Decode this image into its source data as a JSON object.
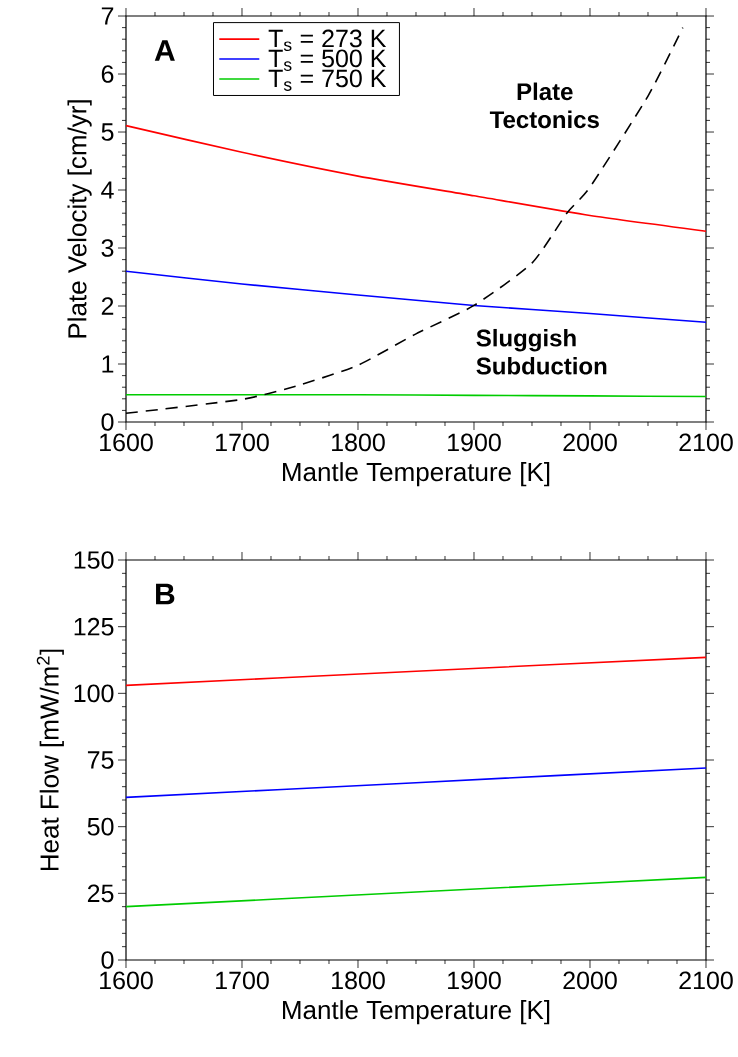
{
  "chart_data": [
    {
      "type": "line",
      "title": "A",
      "xlabel": "Mantle Temperature [K]",
      "ylabel": "Plate Velocity [cm/yr]",
      "xlim": [
        1600,
        2100
      ],
      "ylim": [
        0,
        7
      ],
      "xticks": [
        1600,
        1700,
        1800,
        1900,
        2000,
        2100
      ],
      "yticks": [
        0,
        1,
        2,
        3,
        4,
        5,
        6,
        7
      ],
      "legend": "top left",
      "marker": "none",
      "x": [
        1600,
        1700,
        1800,
        1900,
        2000,
        2100
      ],
      "series": [
        {
          "name": "T$_{s}$ = 273 K",
          "color": "#ff0000",
          "values": [
            5.11,
            4.65,
            4.24,
            3.9,
            3.56,
            3.29
          ]
        },
        {
          "name": "T$_{s}$ = 500 K",
          "color": "#0000ff",
          "values": [
            2.6,
            2.38,
            2.19,
            2.01,
            1.87,
            1.72
          ]
        },
        {
          "name": "T$_{s}$ = 750 K",
          "color": "#00cc00",
          "values": [
            0.47,
            0.47,
            0.47,
            0.46,
            0.45,
            0.44
          ]
        },
        {
          "color": "#000000",
          "line_style": "dashed",
          "x": [
            1600,
            1700,
            1750,
            1800,
            1850,
            1900,
            1950,
            1980,
            2000,
            2050,
            2080
          ],
          "values": [
            0.15,
            0.39,
            0.64,
            0.98,
            1.52,
            2.01,
            2.74,
            3.6,
            4.05,
            5.62,
            6.8
          ]
        }
      ],
      "annotations": [
        "Plate Tectonics",
        "Sluggish Subduction"
      ]
    },
    {
      "type": "line",
      "title": "B",
      "xlabel": "Mantle Temperature [K]",
      "ylabel": "Heat Flow [mW/m$^{2}$]",
      "xlim": [
        1600,
        2100
      ],
      "ylim": [
        0,
        150
      ],
      "xticks": [
        1600,
        1700,
        1800,
        1900,
        2000,
        2100
      ],
      "yticks": [
        0,
        25,
        50,
        75,
        100,
        125,
        150
      ],
      "marker": "none",
      "x": [
        1600,
        1850,
        2100
      ],
      "series": [
        {
          "color": "#ff0000",
          "values": [
            103,
            108.3,
            113.5
          ]
        },
        {
          "color": "#0000ff",
          "values": [
            61,
            66.5,
            72
          ]
        },
        {
          "color": "#00cc00",
          "values": [
            20,
            25.5,
            31
          ]
        }
      ]
    }
  ]
}
